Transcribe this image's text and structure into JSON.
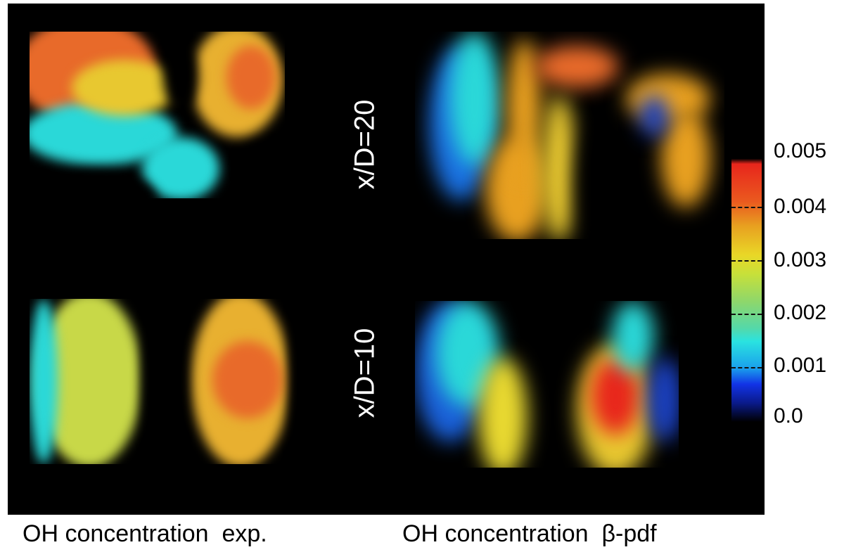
{
  "figure": {
    "row_labels": [
      "x/D=20",
      "x/D=10"
    ],
    "captions": {
      "left": "OH concentration  exp.",
      "right": "OH concentration  β-pdf"
    },
    "colorbar": {
      "colormap": "jet",
      "range": [
        0.0,
        0.005
      ],
      "ticks": [
        "0.005",
        "0.004",
        "0.003",
        "0.002",
        "0.001",
        "0.0"
      ]
    },
    "colors": {
      "background": "#000000",
      "high": "#e8261c",
      "mid": "#e9d827",
      "low": "#1aa0ec"
    }
  }
}
